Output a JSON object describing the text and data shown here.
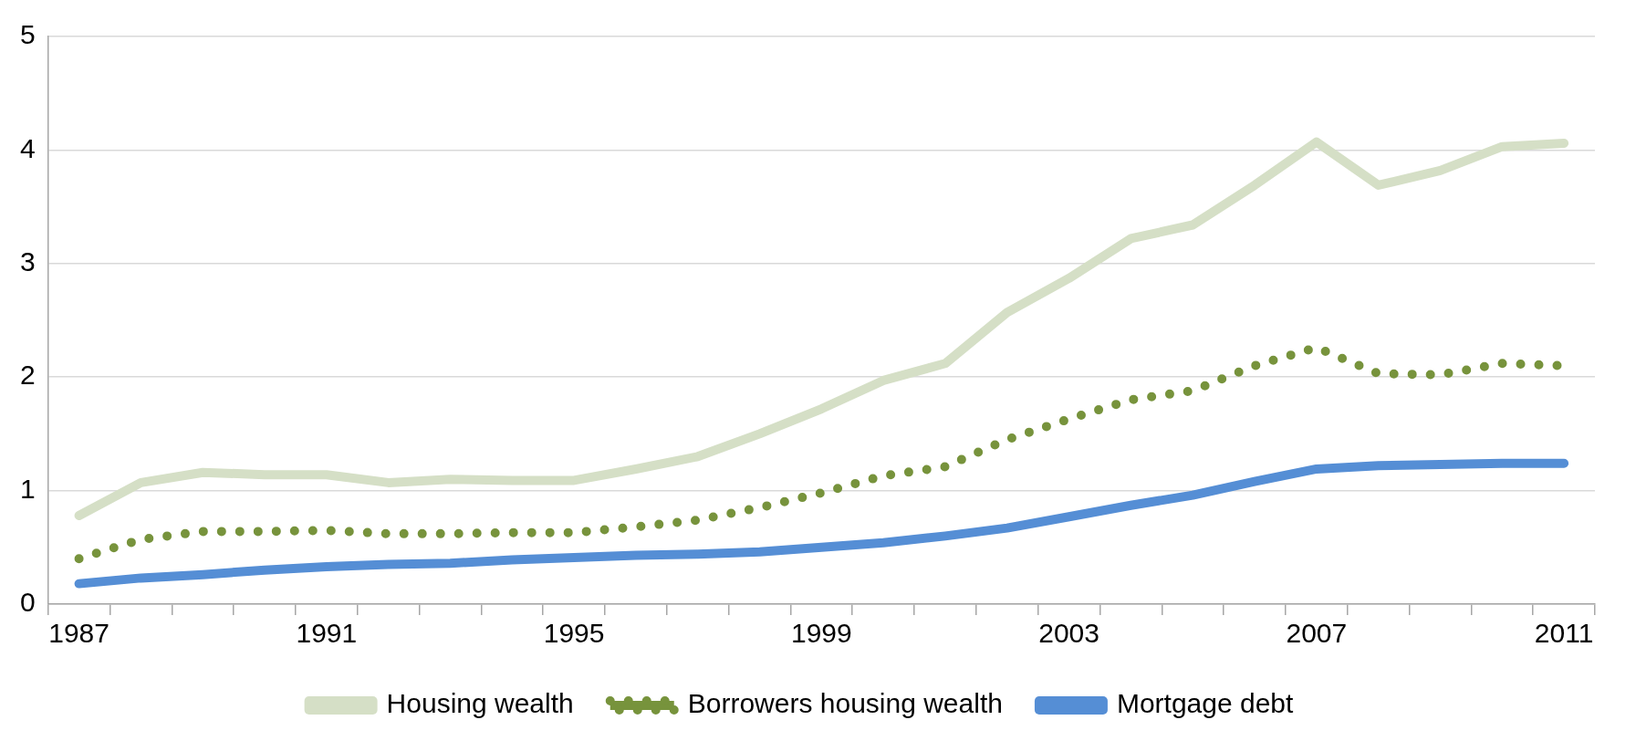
{
  "chart_data": {
    "type": "line",
    "categories": [
      "1987",
      null,
      null,
      null,
      "1991",
      null,
      null,
      null,
      "1995",
      null,
      null,
      null,
      "1999",
      null,
      null,
      null,
      "2003",
      null,
      null,
      null,
      "2007",
      null,
      null,
      null,
      "2011"
    ],
    "series": [
      {
        "name": "Housing wealth",
        "color": "#d5dfc6",
        "values": [
          0.78,
          1.07,
          1.16,
          1.14,
          1.14,
          1.07,
          1.1,
          1.09,
          1.09,
          1.19,
          1.3,
          1.5,
          1.72,
          1.97,
          2.12,
          2.57,
          2.87,
          3.22,
          3.34,
          3.69,
          4.07,
          3.69,
          3.82,
          4.03,
          4.06
        ]
      },
      {
        "name": "Borrowers housing wealth",
        "color": "#77933c",
        "line_style": "dotted",
        "values": [
          0.4,
          0.57,
          0.64,
          0.64,
          0.65,
          0.62,
          0.62,
          0.63,
          0.63,
          0.68,
          0.74,
          0.85,
          0.98,
          1.13,
          1.21,
          1.45,
          1.63,
          1.8,
          1.88,
          2.1,
          2.26,
          2.03,
          2.02,
          2.12,
          2.1
        ]
      },
      {
        "name": "Mortgage debt",
        "color": "#558ed5",
        "values": [
          0.18,
          0.23,
          0.26,
          0.3,
          0.33,
          0.35,
          0.36,
          0.39,
          0.41,
          0.43,
          0.44,
          0.46,
          0.5,
          0.54,
          0.6,
          0.67,
          0.77,
          0.87,
          0.96,
          1.08,
          1.19,
          1.22,
          1.23,
          1.24,
          1.24
        ]
      }
    ],
    "ylim": [
      0,
      5
    ],
    "yticks": [
      0,
      1,
      2,
      3,
      4,
      5
    ],
    "grid": "y",
    "legend": "bottom",
    "marker": "none",
    "line_style": "solid"
  }
}
